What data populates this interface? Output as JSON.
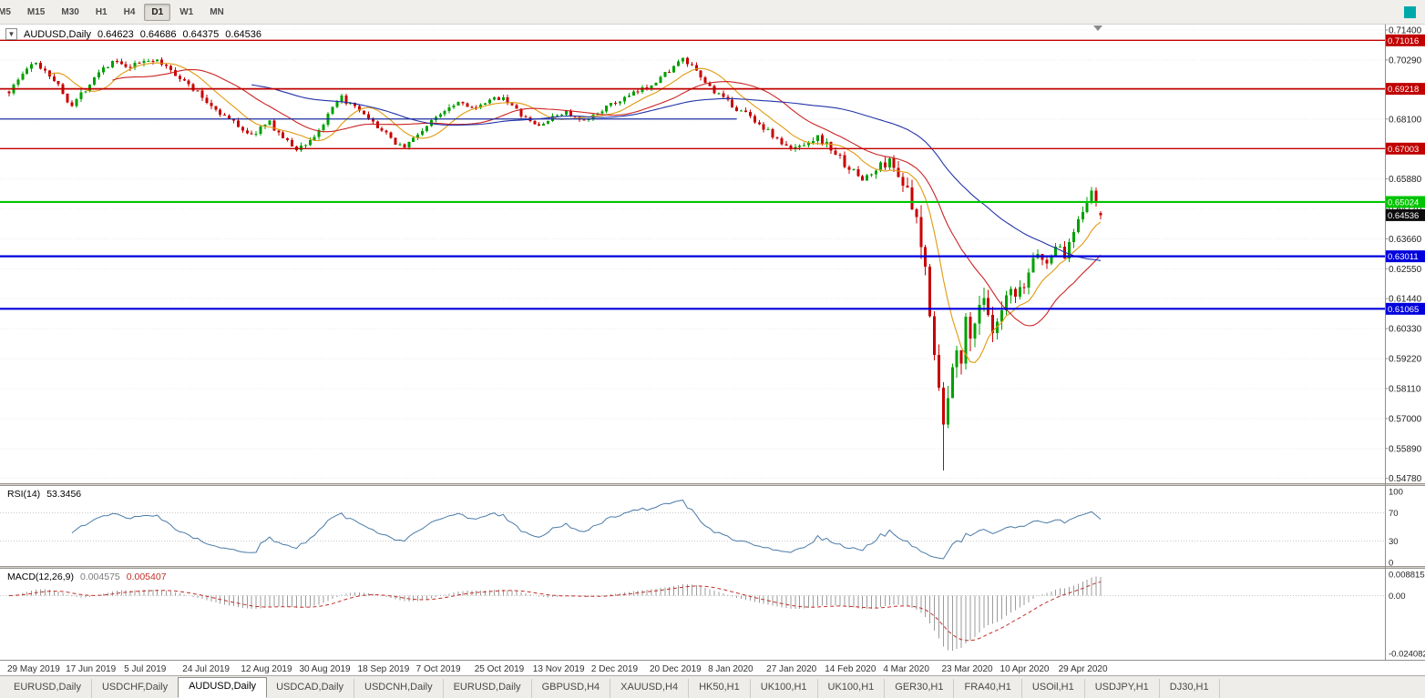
{
  "toolbar": {
    "timeframes": [
      "M5",
      "M15",
      "M30",
      "H1",
      "H4",
      "D1",
      "W1",
      "MN"
    ],
    "active": "D1"
  },
  "main_header": {
    "collapse_icon": "▼",
    "symbol": "AUDUSD,Daily",
    "open": "0.64623",
    "high": "0.64686",
    "low": "0.64375",
    "close": "0.64536"
  },
  "y_axis_ticks": [
    "0.71400",
    "0.70290",
    "0.69180",
    "0.68100",
    "0.66990",
    "0.65880",
    "0.64770",
    "0.63660",
    "0.62550",
    "0.61440",
    "0.60330",
    "0.59220",
    "0.58110",
    "0.57000",
    "0.55890",
    "0.54780"
  ],
  "levels": [
    {
      "value": 0.71016,
      "label": "0.71016",
      "color": "#c00000",
      "width": 1.4
    },
    {
      "value": 0.69218,
      "label": "0.69218",
      "color": "#c00000",
      "width": 1.8
    },
    {
      "value": 0.67003,
      "label": "0.67003",
      "color": "#c00000",
      "width": 1.4
    },
    {
      "value": 0.65024,
      "label": "0.65024",
      "color": "#00c400",
      "width": 2.2
    },
    {
      "value": 0.63011,
      "label": "0.63011",
      "color": "#0000dc",
      "width": 2.2
    },
    {
      "value": 0.61065,
      "label": "0.61065",
      "color": "#0000dc",
      "width": 2.2
    }
  ],
  "current_price": {
    "value": 0.64536,
    "label": "0.64536",
    "badge_color": "#0d0d0d"
  },
  "x_labels": [
    "29 May 2019",
    "17 Jun 2019",
    "5 Jul 2019",
    "24 Jul 2019",
    "12 Aug 2019",
    "30 Aug 2019",
    "18 Sep 2019",
    "7 Oct 2019",
    "25 Oct 2019",
    "13 Nov 2019",
    "2 Dec 2019",
    "20 Dec 2019",
    "8 Jan 2020",
    "27 Jan 2020",
    "14 Feb 2020",
    "4 Mar 2020",
    "23 Mar 2020",
    "10 Apr 2020",
    "29 Apr 2020"
  ],
  "rsi_panel": {
    "name": "RSI(14)",
    "value": "53.3456",
    "period": 14,
    "line_color": "#4a7aa8",
    "axis_labels": [
      {
        "v": 100,
        "t": "100"
      },
      {
        "v": 70,
        "t": "70"
      },
      {
        "v": 30,
        "t": "30"
      },
      {
        "v": 0,
        "t": "0"
      }
    ]
  },
  "macd_panel": {
    "name": "MACD(12,26,9)",
    "value_main": "0.004575",
    "value_signal": "0.005407",
    "fast": 12,
    "slow": 26,
    "signal": 9,
    "hist_color": "#9b9b9b",
    "signal_color": "#c03028",
    "axis_labels": [
      {
        "v": 0.008815,
        "t": "0.008815"
      },
      {
        "v": 0,
        "t": "0.00"
      },
      {
        "v": -0.024082,
        "t": "-0.024082"
      }
    ]
  },
  "tabs": {
    "items": [
      "EURUSD,Daily",
      "USDCHF,Daily",
      "AUDUSD,Daily",
      "USDCAD,Daily",
      "USDCNH,Daily",
      "EURUSD,Daily",
      "GBPUSD,H4",
      "XAUUSD,H4",
      "HK50,H1",
      "UK100,H1",
      "UK100,H1",
      "GER30,H1",
      "FRA40,H1",
      "USOil,H1",
      "USDJPY,H1",
      "DJ30,H1"
    ],
    "active_index": 2
  },
  "chart_data": {
    "type": "candlestick",
    "symbol": "AUDUSD",
    "timeframe": "Daily",
    "candle_count": 244,
    "seed": 1337,
    "labels_every": 13,
    "y_domain": [
      0.546,
      0.716
    ],
    "macd_domain": [
      -0.0241,
      0.0089
    ],
    "candle_colors": {
      "up": "#00a000",
      "down": "#c80000"
    },
    "moving_averages": [
      {
        "period": 10,
        "color": "#e09a10"
      },
      {
        "period": 24,
        "color": "#cc2222"
      },
      {
        "period": 55,
        "color": "#2233aa"
      }
    ],
    "trend_segment": {
      "value": 0.681,
      "end_index": 162,
      "color": "#1c2f9e"
    },
    "last_candle": {
      "o": 0.64623,
      "h": 0.64686,
      "l": 0.64375,
      "c": 0.64536
    },
    "spike": {
      "index": 208,
      "low": 0.5508
    },
    "horizontal_levels": [
      0.71016,
      0.69218,
      0.67003,
      0.65024,
      0.63011,
      0.61065
    ],
    "price_path": [
      [
        0,
        0.6912
      ],
      [
        2,
        0.6955
      ],
      [
        4,
        0.6998
      ],
      [
        6,
        0.7015
      ],
      [
        8,
        0.6992
      ],
      [
        10,
        0.6958
      ],
      [
        12,
        0.6905
      ],
      [
        14,
        0.6862
      ],
      [
        16,
        0.69
      ],
      [
        18,
        0.6945
      ],
      [
        20,
        0.699
      ],
      [
        22,
        0.7012
      ],
      [
        24,
        0.7022
      ],
      [
        26,
        0.6995
      ],
      [
        28,
        0.7008
      ],
      [
        30,
        0.7028
      ],
      [
        32,
        0.703
      ],
      [
        34,
        0.7012
      ],
      [
        36,
        0.6992
      ],
      [
        38,
        0.6965
      ],
      [
        40,
        0.6935
      ],
      [
        42,
        0.6908
      ],
      [
        44,
        0.6872
      ],
      [
        46,
        0.6848
      ],
      [
        48,
        0.682
      ],
      [
        50,
        0.6798
      ],
      [
        52,
        0.6772
      ],
      [
        54,
        0.6748
      ],
      [
        56,
        0.6778
      ],
      [
        58,
        0.6795
      ],
      [
        60,
        0.6758
      ],
      [
        62,
        0.6725
      ],
      [
        64,
        0.6698
      ],
      [
        66,
        0.6718
      ],
      [
        68,
        0.6745
      ],
      [
        70,
        0.6792
      ],
      [
        72,
        0.6848
      ],
      [
        74,
        0.6888
      ],
      [
        76,
        0.6862
      ],
      [
        78,
        0.6838
      ],
      [
        80,
        0.6805
      ],
      [
        82,
        0.6782
      ],
      [
        84,
        0.6752
      ],
      [
        86,
        0.6722
      ],
      [
        88,
        0.6708
      ],
      [
        90,
        0.6738
      ],
      [
        92,
        0.6768
      ],
      [
        94,
        0.68
      ],
      [
        96,
        0.6832
      ],
      [
        98,
        0.6858
      ],
      [
        100,
        0.6875
      ],
      [
        102,
        0.6862
      ],
      [
        104,
        0.6845
      ],
      [
        106,
        0.6868
      ],
      [
        108,
        0.6885
      ],
      [
        110,
        0.6892
      ],
      [
        112,
        0.6858
      ],
      [
        114,
        0.6825
      ],
      [
        116,
        0.6798
      ],
      [
        118,
        0.6785
      ],
      [
        120,
        0.6805
      ],
      [
        122,
        0.6825
      ],
      [
        124,
        0.6838
      ],
      [
        126,
        0.6812
      ],
      [
        128,
        0.6798
      ],
      [
        130,
        0.6822
      ],
      [
        132,
        0.6845
      ],
      [
        134,
        0.6862
      ],
      [
        136,
        0.6878
      ],
      [
        138,
        0.6895
      ],
      [
        140,
        0.6912
      ],
      [
        142,
        0.6928
      ],
      [
        144,
        0.6952
      ],
      [
        146,
        0.6978
      ],
      [
        148,
        0.7005
      ],
      [
        150,
        0.703
      ],
      [
        152,
        0.7002
      ],
      [
        154,
        0.6962
      ],
      [
        156,
        0.6928
      ],
      [
        158,
        0.6898
      ],
      [
        160,
        0.6872
      ],
      [
        162,
        0.6848
      ],
      [
        164,
        0.6832
      ],
      [
        166,
        0.6805
      ],
      [
        168,
        0.6778
      ],
      [
        170,
        0.6748
      ],
      [
        172,
        0.6718
      ],
      [
        174,
        0.6695
      ],
      [
        176,
        0.6712
      ],
      [
        178,
        0.6728
      ],
      [
        180,
        0.6742
      ],
      [
        182,
        0.6715
      ],
      [
        184,
        0.6682
      ],
      [
        186,
        0.6645
      ],
      [
        188,
        0.6612
      ],
      [
        190,
        0.6588
      ],
      [
        192,
        0.6605
      ],
      [
        194,
        0.6638
      ],
      [
        196,
        0.6652
      ],
      [
        198,
        0.6612
      ],
      [
        200,
        0.6535
      ],
      [
        202,
        0.6415
      ],
      [
        204,
        0.6248
      ],
      [
        205,
        0.612
      ],
      [
        206,
        0.5965
      ],
      [
        207,
        0.5815
      ],
      [
        208,
        0.5658
      ],
      [
        209,
        0.5772
      ],
      [
        210,
        0.5868
      ],
      [
        211,
        0.5995
      ],
      [
        212,
        0.5942
      ],
      [
        213,
        0.6048
      ],
      [
        214,
        0.5985
      ],
      [
        215,
        0.6082
      ],
      [
        216,
        0.6128
      ],
      [
        217,
        0.6155
      ],
      [
        218,
        0.6065
      ],
      [
        219,
        0.5998
      ],
      [
        220,
        0.6042
      ],
      [
        221,
        0.6088
      ],
      [
        222,
        0.6132
      ],
      [
        223,
        0.6168
      ],
      [
        224,
        0.6142
      ],
      [
        226,
        0.6185
      ],
      [
        227,
        0.6242
      ],
      [
        228,
        0.6295
      ],
      [
        229,
        0.6322
      ],
      [
        230,
        0.6288
      ],
      [
        231,
        0.6262
      ],
      [
        232,
        0.6315
      ],
      [
        233,
        0.6348
      ],
      [
        234,
        0.6322
      ],
      [
        235,
        0.6298
      ],
      [
        236,
        0.6352
      ],
      [
        237,
        0.6402
      ],
      [
        238,
        0.6448
      ],
      [
        239,
        0.6478
      ],
      [
        240,
        0.6512
      ],
      [
        241,
        0.6535
      ],
      [
        242,
        0.6495
      ],
      [
        243,
        0.64536
      ]
    ],
    "vol_path": [
      [
        0,
        0.0026
      ],
      [
        40,
        0.0024
      ],
      [
        80,
        0.002
      ],
      [
        120,
        0.0017
      ],
      [
        150,
        0.002
      ],
      [
        175,
        0.0023
      ],
      [
        188,
        0.003
      ],
      [
        196,
        0.0038
      ],
      [
        200,
        0.0058
      ],
      [
        204,
        0.009
      ],
      [
        207,
        0.0115
      ],
      [
        209,
        0.0125
      ],
      [
        212,
        0.01
      ],
      [
        216,
        0.0082
      ],
      [
        220,
        0.0068
      ],
      [
        226,
        0.0055
      ],
      [
        232,
        0.0046
      ],
      [
        238,
        0.004
      ],
      [
        243,
        0.0036
      ]
    ]
  }
}
